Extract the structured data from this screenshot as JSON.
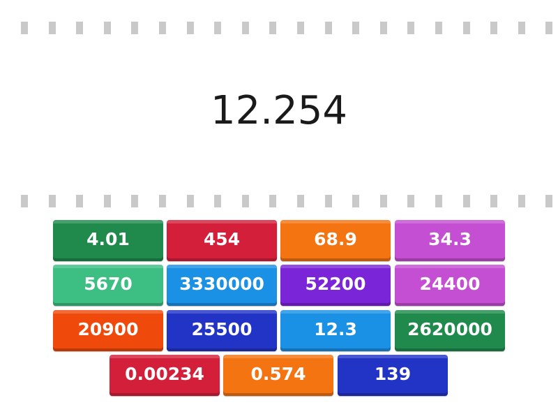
{
  "prompt": {
    "value": "12.254"
  },
  "tiles": [
    {
      "label": "4.01",
      "color": "#1f8a4c"
    },
    {
      "label": "454",
      "color": "#d41f3a"
    },
    {
      "label": "68.9",
      "color": "#f47412"
    },
    {
      "label": "34.3",
      "color": "#c54fd2"
    },
    {
      "label": "5670",
      "color": "#3dbf84"
    },
    {
      "label": "3330000",
      "color": "#1b91e6"
    },
    {
      "label": "52200",
      "color": "#7b25d8"
    },
    {
      "label": "24400",
      "color": "#c54fd2"
    },
    {
      "label": "20900",
      "color": "#ef4a0c"
    },
    {
      "label": "25500",
      "color": "#2234c6"
    },
    {
      "label": "12.3",
      "color": "#1b91e6"
    },
    {
      "label": "2620000",
      "color": "#1f8a4c"
    },
    {
      "label": "0.00234",
      "color": "#d41f3a"
    },
    {
      "label": "0.574",
      "color": "#f47412"
    },
    {
      "label": "139",
      "color": "#2234c6"
    }
  ]
}
